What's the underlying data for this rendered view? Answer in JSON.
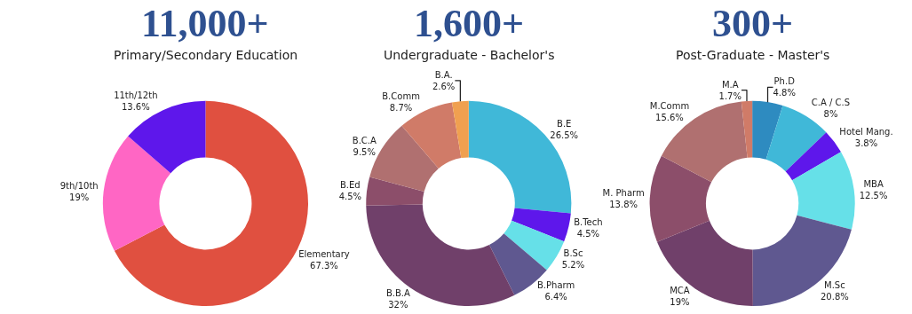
{
  "chart_data": [
    {
      "type": "donut",
      "title": "11,000+",
      "subtitle": "Primary/Secondary Education",
      "legend": false,
      "categories": [
        "Elementary",
        "9th/10th",
        "11th/12th"
      ],
      "values": [
        67.3,
        19,
        13.6
      ],
      "value_labels": [
        "67.3%",
        "19%",
        "13.6%"
      ],
      "colors": [
        "#e05040",
        "#ff66c4",
        "#5e17eb"
      ]
    },
    {
      "type": "donut",
      "title": "1,600+",
      "subtitle": "Undergraduate - Bachelor's",
      "legend": false,
      "categories": [
        "B.E",
        "B.Tech",
        "B.Sc",
        "B.Pharm",
        "B.B.A",
        "B.Ed",
        "B.C.A",
        "B.Comm",
        "B.A."
      ],
      "values": [
        26.5,
        4.5,
        5.2,
        6.4,
        32,
        4.5,
        9.5,
        8.7,
        2.6
      ],
      "value_labels": [
        "26.5%",
        "4.5%",
        "5.2%",
        "6.4%",
        "32%",
        "4.5%",
        "9.5%",
        "8.7%",
        "2.6%"
      ],
      "colors": [
        "#40b8d8",
        "#5e17eb",
        "#66e0e8",
        "#5f5890",
        "#70406a",
        "#8c4e6a",
        "#b07070",
        "#d07b68",
        "#f0a050"
      ]
    },
    {
      "type": "donut",
      "title": "300+",
      "subtitle": "Post-Graduate - Master's",
      "legend": false,
      "categories": [
        "Ph.D",
        "C.A / C.S",
        "Hotel Mang.",
        "MBA",
        "M.Sc",
        "MCA",
        "M. Pharm",
        "M.Comm",
        "M.A"
      ],
      "values": [
        4.8,
        8,
        3.8,
        12.5,
        20.8,
        19,
        13.8,
        15.6,
        1.7
      ],
      "value_labels": [
        "4.8%",
        "8%",
        "3.8%",
        "12.5%",
        "20.8%",
        "19%",
        "13.8%",
        "15.6%",
        "1.7%"
      ],
      "colors": [
        "#2e8bc0",
        "#40b8d8",
        "#5e17eb",
        "#66e0e8",
        "#5f5890",
        "#70406a",
        "#8c4e6a",
        "#b07070",
        "#d07b68"
      ]
    }
  ]
}
